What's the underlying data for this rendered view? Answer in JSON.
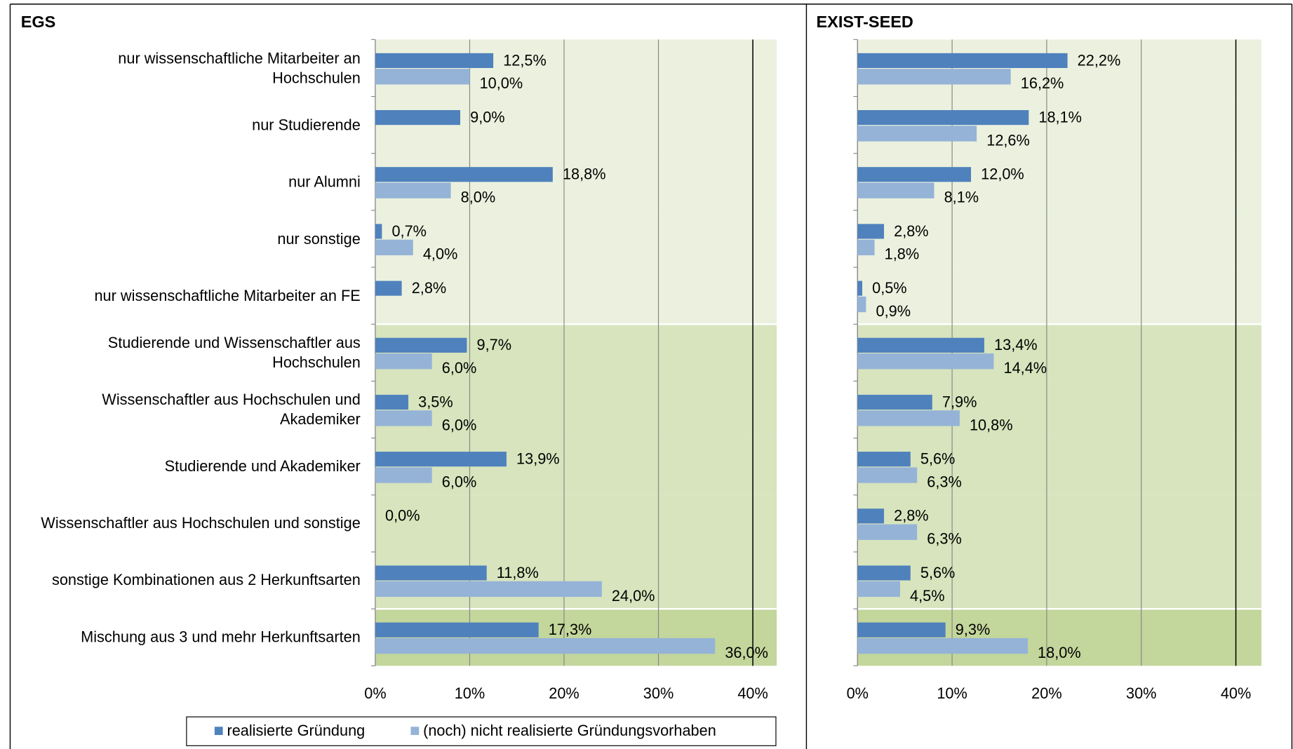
{
  "chart_data": [
    {
      "type": "bar",
      "orientation": "horizontal",
      "title": "EGS",
      "categories": [
        "nur wissenschaftliche Mitarbeiter an Hochschulen",
        "nur Studierende",
        "nur Alumni",
        "nur sonstige",
        "nur wissenschaftliche Mitarbeiter an FE",
        "Studierende und Wissenschaftler aus Hochschulen",
        "Wissenschaftler aus Hochschulen und Akademiker",
        "Studierende und Akademiker",
        "Wissenschaftler aus Hochschulen und sonstige",
        "sonstige Kombinationen aus 2 Herkunftsarten",
        "Mischung aus 3 und mehr Herkunftsarten"
      ],
      "series": [
        {
          "name": "realisierte Gründung",
          "color": "#4f81bd",
          "values": [
            12.5,
            9.0,
            18.8,
            0.7,
            2.8,
            9.7,
            3.5,
            13.9,
            0.0,
            11.8,
            17.3
          ],
          "value_labels": [
            "12,5%",
            "9,0%",
            "18,8%",
            "0,7%",
            "2,8%",
            "9,7%",
            "3,5%",
            "13,9%",
            "0,0%",
            "11,8%",
            "17,3%"
          ]
        },
        {
          "name": "(noch) nicht realisierte Gründungsvorhaben",
          "color": "#95b3d7",
          "values": [
            10.0,
            null,
            8.0,
            4.0,
            null,
            6.0,
            6.0,
            6.0,
            null,
            24.0,
            36.0
          ],
          "value_labels": [
            "10,0%",
            null,
            "8,0%",
            "4,0%",
            null,
            "6,0%",
            "6,0%",
            "6,0%",
            null,
            "24,0%",
            "36,0%"
          ]
        }
      ],
      "xlim": [
        0,
        40
      ],
      "xticks": [
        {
          "value": 0,
          "label": "0%"
        },
        {
          "value": 10,
          "label": "10%"
        },
        {
          "value": 20,
          "label": "20%"
        },
        {
          "value": 30,
          "label": "30%"
        },
        {
          "value": 40,
          "label": "40%"
        }
      ],
      "grid": true,
      "legend": "bottom"
    },
    {
      "type": "bar",
      "orientation": "horizontal",
      "title": "EXIST-SEED",
      "series": [
        {
          "color": "#4f81bd",
          "values": [
            22.2,
            18.1,
            12.0,
            2.8,
            0.5,
            13.4,
            7.9,
            5.6,
            2.8,
            5.6,
            9.3
          ],
          "value_labels": [
            "22,2%",
            "18,1%",
            "12,0%",
            "2,8%",
            "0,5%",
            "13,4%",
            "7,9%",
            "5,6%",
            "2,8%",
            "5,6%",
            "9,3%"
          ]
        },
        {
          "color": "#95b3d7",
          "values": [
            16.2,
            12.6,
            8.1,
            1.8,
            0.9,
            14.4,
            10.8,
            6.3,
            6.3,
            4.5,
            18.0
          ],
          "value_labels": [
            "16,2%",
            "12,6%",
            "8,1%",
            "1,8%",
            "0,9%",
            "14,4%",
            "10,8%",
            "6,3%",
            "6,3%",
            "4,5%",
            "18,0%"
          ]
        }
      ],
      "xlim": [
        0,
        40
      ],
      "xticks": [
        {
          "value": 0,
          "label": "0%"
        },
        {
          "value": 10,
          "label": "10%"
        },
        {
          "value": 20,
          "label": "20%"
        },
        {
          "value": 30,
          "label": "30%"
        },
        {
          "value": 40,
          "label": "40%"
        }
      ],
      "grid": true
    }
  ]
}
